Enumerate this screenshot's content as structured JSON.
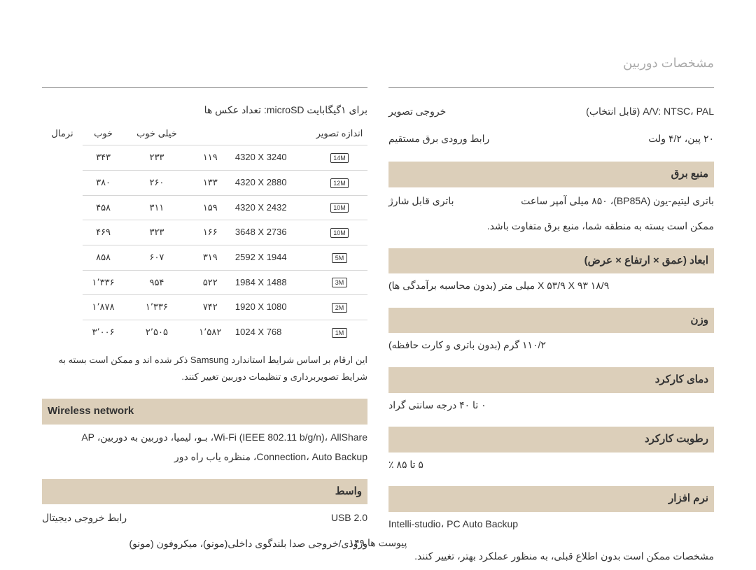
{
  "header": {
    "title": "مشخصات دوربین"
  },
  "right": {
    "storage_caption": "برای ۱گیگابایت microSD: تعداد عکس ها",
    "table_headers": [
      "",
      "",
      "خیلی خوب",
      "خوب",
      "نرمال"
    ],
    "side_label": "اندازه تصویر",
    "rows": [
      {
        "icon": "14M",
        "res": "4320 X 3240",
        "a": "۱۱۹",
        "b": "۲۳۳",
        "c": "۳۴۳"
      },
      {
        "icon": "12M",
        "res": "4320 X 2880",
        "a": "۱۳۳",
        "b": "۲۶۰",
        "c": "۳۸۰"
      },
      {
        "icon": "10M",
        "res": "4320 X 2432",
        "a": "۱۵۹",
        "b": "۳۱۱",
        "c": "۴۵۸"
      },
      {
        "icon": "10M",
        "res": "3648 X 2736",
        "a": "۱۶۶",
        "b": "۳۲۳",
        "c": "۴۶۹"
      },
      {
        "icon": "5M",
        "res": "2592 X 1944",
        "a": "۳۱۹",
        "b": "۶۰۷",
        "c": "۸۵۸"
      },
      {
        "icon": "3M",
        "res": "1984 X 1488",
        "a": "۵۲۲",
        "b": "۹۵۴",
        "c": "۱٬۳۳۶"
      },
      {
        "icon": "2M",
        "res": "1920 X 1080",
        "a": "۷۴۲",
        "b": "۱٬۳۳۶",
        "c": "۱٬۸۷۸"
      },
      {
        "icon": "1M",
        "res": "1024 X 768",
        "a": "۱٬۵۸۲",
        "b": "۲٬۵۰۵",
        "c": "۳٬۰۰۶"
      }
    ],
    "note": "این ارقام بر اساس شرایط استاندارد Samsung ذکر شده اند و ممکن است بسته به شرایط تصویربرداری و تنظیمات دوربین تغییر کنند.",
    "wireless_header": "Wireless network",
    "wireless_text": "Wi-Fi (IEEE 802.11 b/g/n)، AllShare، بـو، لیمیا، دوربین به دوربین، AP Connection، Auto Backup، منظره یاب راه دور",
    "section_interface": "واسط",
    "digital_out": {
      "label": "رابط خروجی دیجیتال",
      "value": "USB 2.0"
    },
    "audio": "ورودی/خروجی صدا    بلندگوی داخلی(مونو)، میکروفون (مونو)"
  },
  "left": {
    "video_out": {
      "label": "خروجی تصویر",
      "value": "A/V: NTSC، PAL (قابل انتخاب)"
    },
    "dc_in": {
      "label": "رابط ورودی برق مستقیم",
      "value": "۲۰ پین، ۴/۲ ولت"
    },
    "section_power": "منبع برق",
    "battery": {
      "label": "باتری قابل شارژ",
      "value": "باتری لیتیم-یون (BP85A)، ۸۵۰ میلی آمپر ساعت"
    },
    "power_note": "ممکن است بسته به منطقه شما، منبع برق متفاوت باشد.",
    "section_dims": "ابعاد (عمق × ارتفاع × عرض)",
    "dims_value": "۱۸/۹ X ۵۳/۹ X ۹۳ میلی متر (بدون محاسبه برآمدگی ها)",
    "section_weight": "وزن",
    "weight_value": "۱۱۰/۲ گرم (بدون باتری و کارت حافظه)",
    "section_op_temp": "دمای کارکرد",
    "op_temp_value": "۰ تا ۴۰ درجه سانتی گراد",
    "section_humidity": "رطوبت کارکرد",
    "humidity_value": "۵ تا ۸۵ ٪",
    "section_software": "نرم افزار",
    "software_value": "Intelli-studio، PC Auto Backup",
    "disclaimer": "مشخصات ممکن است بدون اطلاع قبلی، به منظور عملکرد بهتر، تغییر کنند."
  },
  "footer": "پیوست ها  ۱۴۹"
}
